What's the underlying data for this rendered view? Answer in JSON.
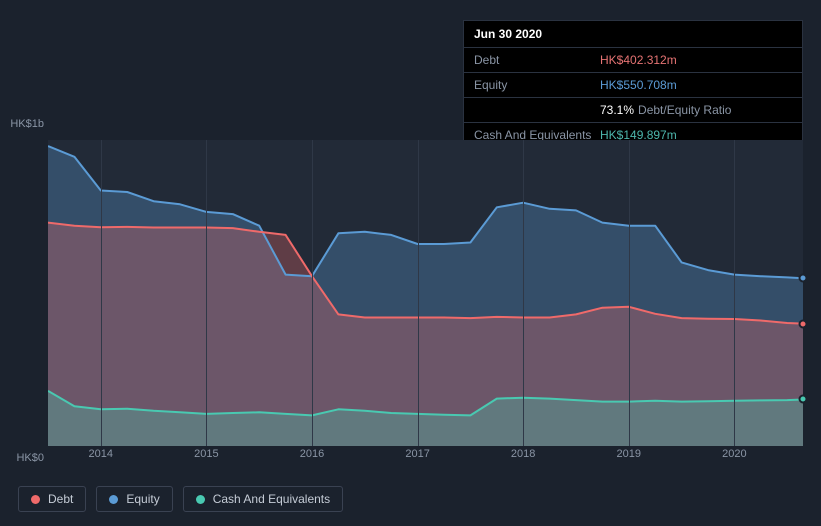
{
  "tooltip": {
    "date": "Jun 30 2020",
    "rows": [
      {
        "label": "Debt",
        "value": "HK$402.312m",
        "cls": "debt"
      },
      {
        "label": "Equity",
        "value": "HK$550.708m",
        "cls": "equity"
      },
      {
        "label": "",
        "value": "73.1%",
        "suffix": "Debt/Equity Ratio",
        "cls": "ratio"
      },
      {
        "label": "Cash And Equivalents",
        "value": "HK$149.897m",
        "cls": "cash"
      }
    ]
  },
  "chart": {
    "type": "area",
    "background_color": "#222a37",
    "page_background": "#1b222d",
    "grid_color": "#2f3847",
    "ylim": [
      0,
      1000
    ],
    "y_ticks": [
      {
        "v": 1000,
        "label": "HK$1b"
      },
      {
        "v": 0,
        "label": "HK$0"
      }
    ],
    "x_years": [
      2014,
      2015,
      2016,
      2017,
      2018,
      2019,
      2020
    ],
    "x_domain": [
      2013.5,
      2020.65
    ],
    "series": {
      "equity": {
        "color": "#5b9bd5",
        "fill": "rgba(91,155,213,0.32)",
        "stroke_width": 2,
        "data": [
          [
            2013.5,
            980
          ],
          [
            2013.75,
            945
          ],
          [
            2014.0,
            835
          ],
          [
            2014.25,
            830
          ],
          [
            2014.5,
            800
          ],
          [
            2014.75,
            790
          ],
          [
            2015.0,
            765
          ],
          [
            2015.25,
            758
          ],
          [
            2015.5,
            720
          ],
          [
            2015.75,
            560
          ],
          [
            2016.0,
            555
          ],
          [
            2016.25,
            695
          ],
          [
            2016.5,
            700
          ],
          [
            2016.75,
            690
          ],
          [
            2017.0,
            660
          ],
          [
            2017.25,
            660
          ],
          [
            2017.5,
            665
          ],
          [
            2017.75,
            780
          ],
          [
            2018.0,
            795
          ],
          [
            2018.25,
            775
          ],
          [
            2018.5,
            770
          ],
          [
            2018.75,
            730
          ],
          [
            2019.0,
            720
          ],
          [
            2019.25,
            720
          ],
          [
            2019.5,
            600
          ],
          [
            2019.75,
            575
          ],
          [
            2020.0,
            560
          ],
          [
            2020.25,
            555
          ],
          [
            2020.5,
            551
          ],
          [
            2020.65,
            548
          ]
        ]
      },
      "debt": {
        "color": "#ef6a6a",
        "fill": "rgba(239,106,106,0.30)",
        "stroke_width": 2,
        "data": [
          [
            2013.5,
            730
          ],
          [
            2013.75,
            720
          ],
          [
            2014.0,
            715
          ],
          [
            2014.25,
            716
          ],
          [
            2014.5,
            714
          ],
          [
            2014.75,
            714
          ],
          [
            2015.0,
            714
          ],
          [
            2015.25,
            712
          ],
          [
            2015.5,
            700
          ],
          [
            2015.75,
            690
          ],
          [
            2016.0,
            555
          ],
          [
            2016.25,
            430
          ],
          [
            2016.5,
            420
          ],
          [
            2016.75,
            420
          ],
          [
            2017.0,
            420
          ],
          [
            2017.25,
            420
          ],
          [
            2017.5,
            418
          ],
          [
            2017.75,
            422
          ],
          [
            2018.0,
            420
          ],
          [
            2018.25,
            420
          ],
          [
            2018.5,
            430
          ],
          [
            2018.75,
            452
          ],
          [
            2019.0,
            455
          ],
          [
            2019.25,
            432
          ],
          [
            2019.5,
            418
          ],
          [
            2019.75,
            416
          ],
          [
            2020.0,
            415
          ],
          [
            2020.25,
            410
          ],
          [
            2020.5,
            402
          ],
          [
            2020.65,
            400
          ]
        ]
      },
      "cash": {
        "color": "#49c9b1",
        "fill": "rgba(73,201,177,0.30)",
        "stroke_width": 2,
        "data": [
          [
            2013.5,
            180
          ],
          [
            2013.75,
            130
          ],
          [
            2014.0,
            120
          ],
          [
            2014.25,
            122
          ],
          [
            2014.5,
            115
          ],
          [
            2014.75,
            110
          ],
          [
            2015.0,
            105
          ],
          [
            2015.25,
            108
          ],
          [
            2015.5,
            110
          ],
          [
            2015.75,
            105
          ],
          [
            2016.0,
            100
          ],
          [
            2016.25,
            120
          ],
          [
            2016.5,
            115
          ],
          [
            2016.75,
            108
          ],
          [
            2017.0,
            105
          ],
          [
            2017.25,
            102
          ],
          [
            2017.5,
            100
          ],
          [
            2017.75,
            155
          ],
          [
            2018.0,
            158
          ],
          [
            2018.25,
            155
          ],
          [
            2018.5,
            150
          ],
          [
            2018.75,
            145
          ],
          [
            2019.0,
            145
          ],
          [
            2019.25,
            148
          ],
          [
            2019.5,
            145
          ],
          [
            2019.75,
            146
          ],
          [
            2020.0,
            148
          ],
          [
            2020.25,
            149
          ],
          [
            2020.5,
            150
          ],
          [
            2020.65,
            152
          ]
        ]
      }
    },
    "legend": [
      {
        "label": "Debt",
        "color": "#ef6a6a",
        "key": "debt"
      },
      {
        "label": "Equity",
        "color": "#5b9bd5",
        "key": "equity"
      },
      {
        "label": "Cash And Equivalents",
        "color": "#49c9b1",
        "key": "cash"
      }
    ],
    "end_markers": [
      {
        "series": "equity",
        "color": "#5b9bd5"
      },
      {
        "series": "debt",
        "color": "#ef6a6a"
      },
      {
        "series": "cash",
        "color": "#49c9b1"
      }
    ]
  },
  "fonts": {
    "axis": 11,
    "legend": 12,
    "tooltip": 12
  }
}
